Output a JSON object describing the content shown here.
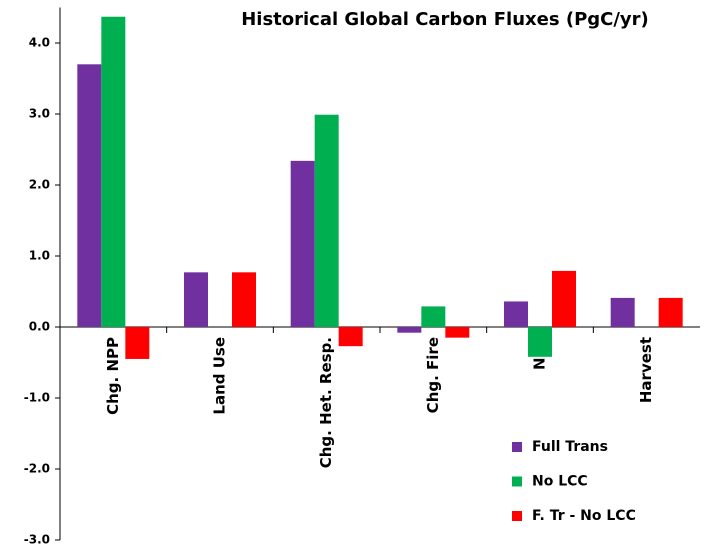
{
  "chart_data": {
    "type": "bar",
    "title": "Historical Global Carbon Fluxes (PgC/yr)",
    "categories": [
      "Chg. NPP",
      "Land Use",
      "Chg. Het. Resp.",
      "Chg. Fire",
      "NEE",
      "Harvest"
    ],
    "series": [
      {
        "name": "Full Trans",
        "color": "#7030a0",
        "values": [
          3.7,
          0.77,
          2.34,
          -0.08,
          0.36,
          0.41
        ]
      },
      {
        "name": "No LCC",
        "color": "#00b050",
        "values": [
          4.37,
          0,
          2.99,
          0.29,
          -0.42,
          0
        ]
      },
      {
        "name": "F. Tr - No LCC",
        "color": "#ff0000",
        "values": [
          -0.45,
          0.77,
          -0.27,
          -0.15,
          0.79,
          0.41
        ]
      }
    ],
    "ylim": [
      -3,
      4.5
    ],
    "yticks": [
      {
        "value": -3,
        "label": "-3.0"
      },
      {
        "value": -2,
        "label": "-2.0"
      },
      {
        "value": -1,
        "label": "-1.0"
      },
      {
        "value": 0,
        "label": "0.0"
      },
      {
        "value": 1,
        "label": "1.0"
      },
      {
        "value": 2,
        "label": "2.0"
      },
      {
        "value": 3,
        "label": "3.0"
      },
      {
        "value": 4,
        "label": "4.0"
      }
    ],
    "legend": "lower right",
    "grid": false
  }
}
